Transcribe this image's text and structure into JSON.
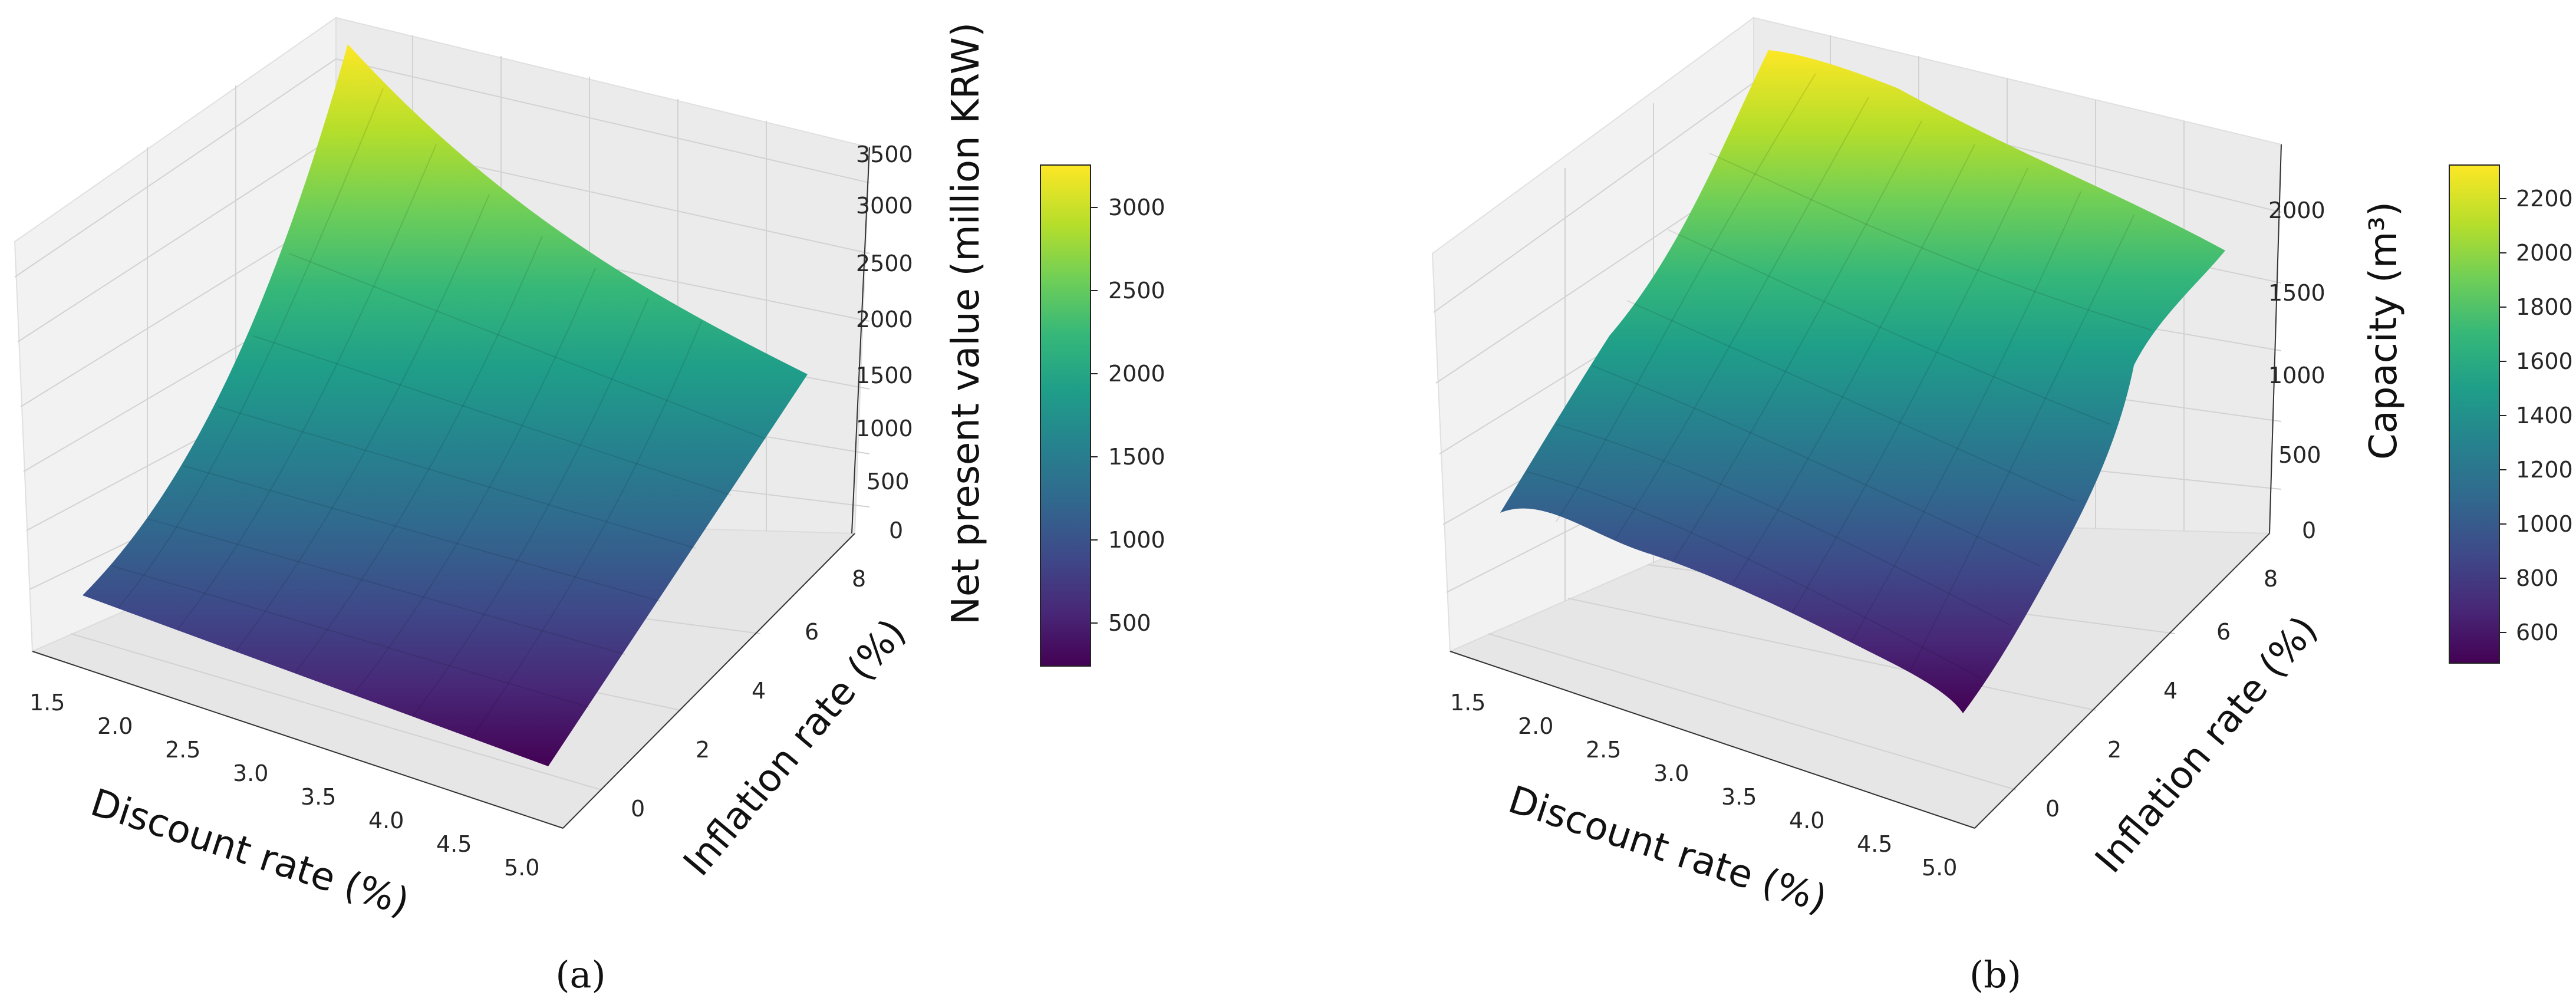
{
  "chart_data": [
    {
      "type": "surface3d",
      "panel_label": "(a)",
      "xlabel": "Discount rate (%)",
      "ylabel": "Inflation rate (%)",
      "zlabel": "Net present value (million KRW)",
      "x_ticks": [
        "1.5",
        "2.0",
        "2.5",
        "3.0",
        "3.5",
        "4.0",
        "4.5",
        "5.0"
      ],
      "y_ticks": [
        "0",
        "2",
        "4",
        "6",
        "8"
      ],
      "z_ticks": [
        "0",
        "500",
        "1000",
        "1500",
        "2000",
        "2500",
        "3000",
        "3500"
      ],
      "xlim": [
        1.5,
        5.0
      ],
      "ylim": [
        -1,
        8
      ],
      "zlim": [
        0,
        3500
      ],
      "colorbar": {
        "colormap": "viridis",
        "min": 230,
        "max": 3250,
        "ticks": [
          "500",
          "1000",
          "1500",
          "2000",
          "2500",
          "3000"
        ]
      },
      "surface_corners": [
        {
          "discount_rate": 1.5,
          "inflation_rate": -1,
          "value": 900
        },
        {
          "discount_rate": 5.0,
          "inflation_rate": -1,
          "value": 230
        },
        {
          "discount_rate": 5.0,
          "inflation_rate": 8,
          "value": 1450
        },
        {
          "discount_rate": 1.5,
          "inflation_rate": 8,
          "value": 3250
        }
      ],
      "grid": true
    },
    {
      "type": "surface3d",
      "panel_label": "(b)",
      "xlabel": "Discount rate (%)",
      "ylabel": "Inflation rate (%)",
      "zlabel": "Capacity (m³)",
      "x_ticks": [
        "1.5",
        "2.0",
        "2.5",
        "3.0",
        "3.5",
        "4.0",
        "4.5",
        "5.0"
      ],
      "y_ticks": [
        "0",
        "2",
        "4",
        "6",
        "8"
      ],
      "z_ticks": [
        "0",
        "500",
        "1000",
        "1500",
        "2000"
      ],
      "xlim": [
        1.5,
        5.0
      ],
      "ylim": [
        -1,
        8
      ],
      "zlim": [
        0,
        2300
      ],
      "colorbar": {
        "colormap": "viridis",
        "min": 480,
        "max": 2280,
        "ticks": [
          "600",
          "800",
          "1000",
          "1200",
          "1400",
          "1600",
          "1800",
          "2000",
          "2200"
        ]
      },
      "surface_corners": [
        {
          "discount_rate": 1.5,
          "inflation_rate": -1,
          "value": 850
        },
        {
          "discount_rate": 5.0,
          "inflation_rate": -1,
          "value": 480
        },
        {
          "discount_rate": 5.0,
          "inflation_rate": 8,
          "value": 1900
        },
        {
          "discount_rate": 1.5,
          "inflation_rate": 8,
          "value": 2250
        }
      ],
      "grid": true
    }
  ]
}
